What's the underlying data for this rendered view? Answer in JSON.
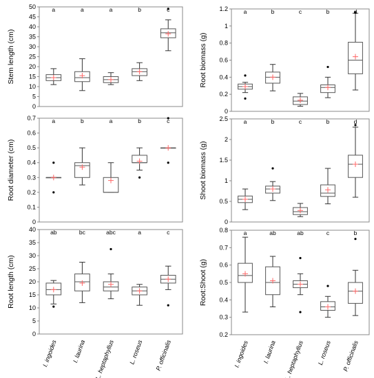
{
  "categories": [
    "I. ingoides",
    "I. laurina",
    "L. heptaphyllus",
    "L. roseus",
    "P. officinalis"
  ],
  "chart_data": [
    {
      "type": "box",
      "ylabel": "Stem length (cm)",
      "ylim": [
        0,
        50
      ],
      "ticks": [
        "0",
        "5",
        "10",
        "15",
        "20",
        "25",
        "30",
        "35",
        "40",
        "45",
        "50"
      ],
      "letters": [
        "a",
        "a",
        "a",
        "b",
        "c"
      ],
      "boxes": [
        {
          "min": 11,
          "q1": 13,
          "median": 14.5,
          "q3": 16,
          "max": 19,
          "mean": 14.5,
          "outliers": []
        },
        {
          "min": 8,
          "q1": 12.5,
          "median": 14.5,
          "q3": 17.5,
          "max": 24,
          "mean": 15.5,
          "outliers": []
        },
        {
          "min": 11,
          "q1": 12,
          "median": 13.5,
          "q3": 15,
          "max": 17,
          "mean": 13.5,
          "outliers": []
        },
        {
          "min": 13,
          "q1": 15.5,
          "median": 17.5,
          "q3": 19,
          "max": 22,
          "mean": 17.5,
          "outliers": []
        },
        {
          "min": 28,
          "q1": 34.5,
          "median": 37,
          "q3": 39,
          "max": 43.5,
          "mean": 36.5,
          "outliers": [
            49
          ]
        }
      ]
    },
    {
      "type": "box",
      "ylabel": "Root biomass (g)",
      "ylim": [
        0,
        1.2
      ],
      "ticks": [
        "0",
        "0.2",
        "0.4",
        "0.6",
        "0.8",
        "1",
        "1.2"
      ],
      "letters": [
        "a",
        "b",
        "c",
        "b",
        "d"
      ],
      "boxes": [
        {
          "min": 0.22,
          "q1": 0.26,
          "median": 0.29,
          "q3": 0.32,
          "max": 0.34,
          "mean": 0.29,
          "outliers": [
            0.15,
            0.42
          ]
        },
        {
          "min": 0.24,
          "q1": 0.33,
          "median": 0.4,
          "q3": 0.46,
          "max": 0.55,
          "mean": 0.4,
          "outliers": []
        },
        {
          "min": 0.06,
          "q1": 0.08,
          "median": 0.12,
          "q3": 0.17,
          "max": 0.21,
          "mean": 0.13,
          "outliers": []
        },
        {
          "min": 0.16,
          "q1": 0.22,
          "median": 0.28,
          "q3": 0.31,
          "max": 0.4,
          "mean": 0.28,
          "outliers": [
            0.52
          ]
        },
        {
          "min": 0.25,
          "q1": 0.44,
          "median": 0.6,
          "q3": 0.81,
          "max": 1.15,
          "mean": 0.64,
          "outliers": [
            1.16
          ]
        }
      ]
    },
    {
      "type": "box",
      "ylabel": "Root diameter (cm)",
      "ylim": [
        0,
        0.7
      ],
      "ticks": [
        "0",
        "0.1",
        "0.2",
        "0.3",
        "0.4",
        "0.5",
        "0.6",
        "0.7"
      ],
      "letters": [
        "a",
        "b",
        "a",
        "b",
        "c"
      ],
      "boxes": [
        {
          "min": 0.3,
          "q1": 0.3,
          "median": 0.3,
          "q3": 0.3,
          "max": 0.3,
          "mean": 0.3,
          "outliers": [
            0.2,
            0.4
          ]
        },
        {
          "min": 0.25,
          "q1": 0.3,
          "median": 0.38,
          "q3": 0.4,
          "max": 0.5,
          "mean": 0.37,
          "outliers": []
        },
        {
          "min": 0.2,
          "q1": 0.2,
          "median": 0.2,
          "q3": 0.3,
          "max": 0.4,
          "mean": 0.28,
          "outliers": []
        },
        {
          "min": 0.35,
          "q1": 0.4,
          "median": 0.4,
          "q3": 0.45,
          "max": 0.5,
          "mean": 0.41,
          "outliers": [
            0.3
          ]
        },
        {
          "min": 0.5,
          "q1": 0.5,
          "median": 0.5,
          "q3": 0.5,
          "max": 0.5,
          "mean": 0.5,
          "outliers": [
            0.4,
            0.7
          ]
        }
      ]
    },
    {
      "type": "box",
      "ylabel": "Shoot biomass (g)",
      "ylim": [
        0,
        2.5
      ],
      "ticks": [
        "0",
        "0.5",
        "1",
        "1.5",
        "2",
        "2.5"
      ],
      "letters": [
        "a",
        "b",
        "c",
        "b",
        "d"
      ],
      "boxes": [
        {
          "min": 0.3,
          "q1": 0.47,
          "median": 0.55,
          "q3": 0.63,
          "max": 0.8,
          "mean": 0.55,
          "outliers": []
        },
        {
          "min": 0.52,
          "q1": 0.7,
          "median": 0.8,
          "q3": 0.87,
          "max": 0.98,
          "mean": 0.8,
          "outliers": [
            1.3
          ]
        },
        {
          "min": 0.13,
          "q1": 0.18,
          "median": 0.25,
          "q3": 0.35,
          "max": 0.45,
          "mean": 0.28,
          "outliers": []
        },
        {
          "min": 0.44,
          "q1": 0.62,
          "median": 0.7,
          "q3": 0.9,
          "max": 1.3,
          "mean": 0.78,
          "outliers": []
        },
        {
          "min": 0.6,
          "q1": 1.08,
          "median": 1.4,
          "q3": 1.62,
          "max": 2.3,
          "mean": 1.4,
          "outliers": [
            2.35
          ]
        }
      ]
    },
    {
      "type": "box",
      "ylabel": "Root length (cm)",
      "ylim": [
        0,
        40
      ],
      "ticks": [
        "0",
        "5",
        "10",
        "15",
        "20",
        "25",
        "30",
        "35",
        "40"
      ],
      "letters": [
        "ab",
        "bc",
        "abc",
        "a",
        "c"
      ],
      "boxes": [
        {
          "min": 11.5,
          "q1": 15,
          "median": 17,
          "q3": 19.5,
          "max": 20.5,
          "mean": 17,
          "outliers": [
            10.5
          ]
        },
        {
          "min": 12,
          "q1": 16.5,
          "median": 20,
          "q3": 23,
          "max": 27.5,
          "mean": 19.5,
          "outliers": []
        },
        {
          "min": 13.5,
          "q1": 16.5,
          "median": 18,
          "q3": 20,
          "max": 23,
          "mean": 19,
          "outliers": [
            32.5
          ]
        },
        {
          "min": 11,
          "q1": 15,
          "median": 16.5,
          "q3": 18,
          "max": 19,
          "mean": 16.5,
          "outliers": []
        },
        {
          "min": 17,
          "q1": 19.5,
          "median": 21,
          "q3": 22.5,
          "max": 26,
          "mean": 21,
          "outliers": [
            11
          ]
        }
      ]
    },
    {
      "type": "box",
      "ylabel": "Root:Shoot (g)",
      "ylim": [
        0.2,
        0.8
      ],
      "ticks": [
        "0.2",
        "0.3",
        "0.4",
        "0.5",
        "0.6",
        "0.7",
        "0.8"
      ],
      "letters": [
        "a",
        "ab",
        "ab",
        "c",
        "b"
      ],
      "boxes": [
        {
          "min": 0.33,
          "q1": 0.5,
          "median": 0.54,
          "q3": 0.61,
          "max": 0.76,
          "mean": 0.55,
          "outliers": []
        },
        {
          "min": 0.36,
          "q1": 0.43,
          "median": 0.5,
          "q3": 0.59,
          "max": 0.65,
          "mean": 0.51,
          "outliers": []
        },
        {
          "min": 0.43,
          "q1": 0.47,
          "median": 0.49,
          "q3": 0.51,
          "max": 0.55,
          "mean": 0.49,
          "outliers": [
            0.33,
            0.64
          ]
        },
        {
          "min": 0.3,
          "q1": 0.34,
          "median": 0.36,
          "q3": 0.39,
          "max": 0.42,
          "mean": 0.36,
          "outliers": [
            0.48
          ]
        },
        {
          "min": 0.31,
          "q1": 0.38,
          "median": 0.45,
          "q3": 0.5,
          "max": 0.57,
          "mean": 0.45,
          "outliers": [
            0.75
          ]
        }
      ]
    }
  ],
  "colors": {
    "mean_marker": "#ff6666",
    "box_line": "#555555",
    "whisker": "#333333",
    "outlier": "#000000"
  }
}
